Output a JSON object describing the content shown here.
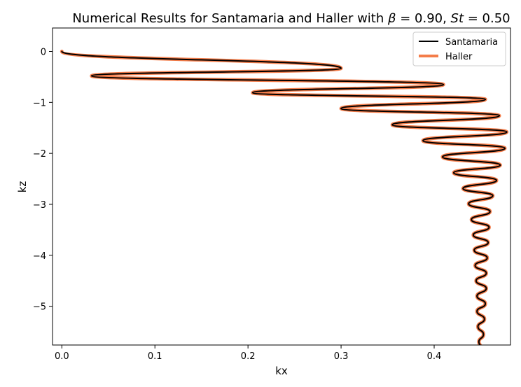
{
  "chart_data": {
    "type": "line",
    "title_prefix": "Numerical Results for Santamaria and Haller with ",
    "title_beta": "β",
    "title_beta_value": " = 0.90, ",
    "title_st": "St",
    "title_st_value": " = 0.50",
    "xlabel": "kx",
    "ylabel": "kz",
    "xlim": [
      -0.01,
      0.482
    ],
    "ylim": [
      -5.76,
      0.46
    ],
    "xticks": [
      0.0,
      0.1,
      0.2,
      0.3,
      0.4
    ],
    "xtick_labels": [
      "0.0",
      "0.1",
      "0.2",
      "0.3",
      "0.4"
    ],
    "yticks": [
      0,
      -1,
      -2,
      -3,
      -4,
      -5
    ],
    "ytick_labels": [
      "0",
      "−1",
      "−2",
      "−3",
      "−4",
      "−5"
    ],
    "grid": false,
    "legend_position": "top-right",
    "extrema": [
      {
        "x": 0.0,
        "y": 0.0
      },
      {
        "x": 0.3,
        "y": -0.33
      },
      {
        "x": 0.032,
        "y": -0.48
      },
      {
        "x": 0.41,
        "y": -0.65
      },
      {
        "x": 0.205,
        "y": -0.81
      },
      {
        "x": 0.455,
        "y": -0.94
      },
      {
        "x": 0.3,
        "y": -1.12
      },
      {
        "x": 0.47,
        "y": -1.26
      },
      {
        "x": 0.355,
        "y": -1.44
      },
      {
        "x": 0.478,
        "y": -1.58
      },
      {
        "x": 0.388,
        "y": -1.75
      },
      {
        "x": 0.476,
        "y": -1.9
      },
      {
        "x": 0.409,
        "y": -2.07
      },
      {
        "x": 0.471,
        "y": -2.23
      },
      {
        "x": 0.421,
        "y": -2.38
      },
      {
        "x": 0.467,
        "y": -2.53
      },
      {
        "x": 0.431,
        "y": -2.69
      },
      {
        "x": 0.463,
        "y": -2.83
      },
      {
        "x": 0.437,
        "y": -2.99
      },
      {
        "x": 0.46,
        "y": -3.14
      },
      {
        "x": 0.44,
        "y": -3.3
      },
      {
        "x": 0.459,
        "y": -3.45
      },
      {
        "x": 0.442,
        "y": -3.6
      },
      {
        "x": 0.458,
        "y": -3.75
      },
      {
        "x": 0.443,
        "y": -3.9
      },
      {
        "x": 0.457,
        "y": -4.05
      },
      {
        "x": 0.444,
        "y": -4.2
      },
      {
        "x": 0.456,
        "y": -4.35
      },
      {
        "x": 0.445,
        "y": -4.5
      },
      {
        "x": 0.456,
        "y": -4.65
      },
      {
        "x": 0.446,
        "y": -4.8
      },
      {
        "x": 0.455,
        "y": -4.95
      },
      {
        "x": 0.446,
        "y": -5.1
      },
      {
        "x": 0.454,
        "y": -5.25
      },
      {
        "x": 0.447,
        "y": -5.4
      },
      {
        "x": 0.453,
        "y": -5.55
      },
      {
        "x": 0.448,
        "y": -5.7
      },
      {
        "x": 0.45,
        "y": -5.8
      }
    ],
    "series": [
      {
        "name": "Santamaria",
        "color": "#000000",
        "style": "thin-solid"
      },
      {
        "name": "Haller",
        "color": "#f47d4a",
        "style": "thick-solid"
      }
    ]
  }
}
